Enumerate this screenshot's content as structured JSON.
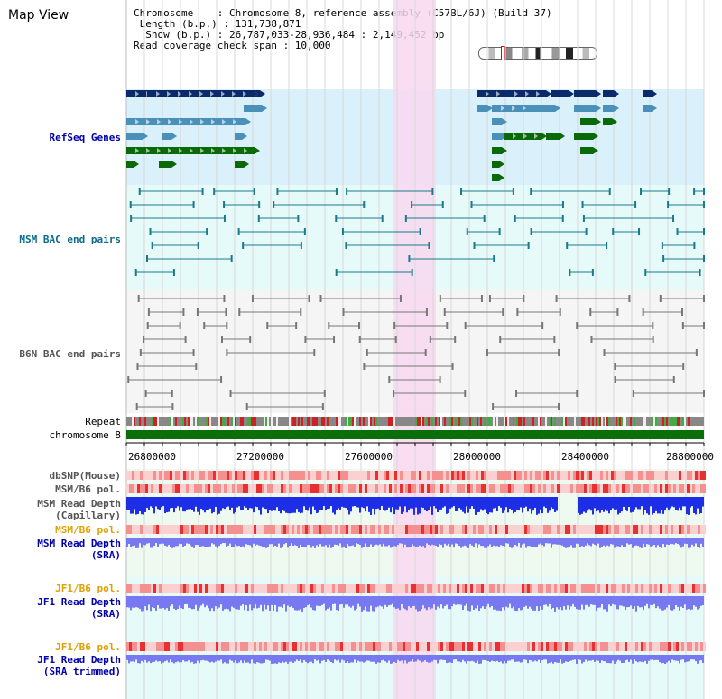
{
  "title": "Map View",
  "info": {
    "chromosome": "Chromosome    : Chromosome 8, reference assembly (C57BL/6J) (Build 37)",
    "length": " Length (b.p.) : 131,738,871",
    "show": "  Show (b.p.) : 26,787,033-28,936,484 : 2,149,452 bp",
    "coverage": "Read coverage check span : 10,000"
  },
  "tracks": {
    "refseq": "RefSeq Genes",
    "msm_bac": "MSM BAC end pairs",
    "b6n_bac": "B6N BAC end pairs",
    "repeat": "Repeat",
    "chromosome": "chromosome 8",
    "dbsnp": "dbSNP(Mouse)",
    "msm_b6_pol": "MSM/B6 pol.",
    "msm_read_cap": "MSM Read Depth\n(Capillary)",
    "msm_b6_pol2": "MSM/B6 pol.",
    "msm_read_sra": "MSM Read Depth\n(SRA)",
    "jf1_b6_pol": "JF1/B6 pol.",
    "jf1_read_sra": "JF1 Read Depth\n(SRA)",
    "jf1_b6_pol2": "JF1/B6 pol.",
    "jf1_read_trim": "JF1 Read Depth\n(SRA trimmed)"
  },
  "axis": {
    "ticks": [
      "26800000",
      "27200000",
      "27600000",
      "28000000",
      "28400000",
      "28800000"
    ]
  },
  "colors": {
    "refseq_bg": "#daf0fa",
    "bac_bg": "#e6fafa",
    "b6n_bg": "#f5f5f5",
    "highlight": "#f8d8f0",
    "dark_blue": "#0a2a6a",
    "mid_blue": "#4a90b8",
    "green": "#0a6a0a",
    "teal": "#1a7a8a",
    "gray": "#777777",
    "chrom_green": "#0a6e0a",
    "depth_blue": "#1e2ee6",
    "sra_blue": "#7878f0",
    "label_blue": "#0000aa",
    "label_orange": "#e0a000",
    "label_teal": "#0a6a8a"
  }
}
